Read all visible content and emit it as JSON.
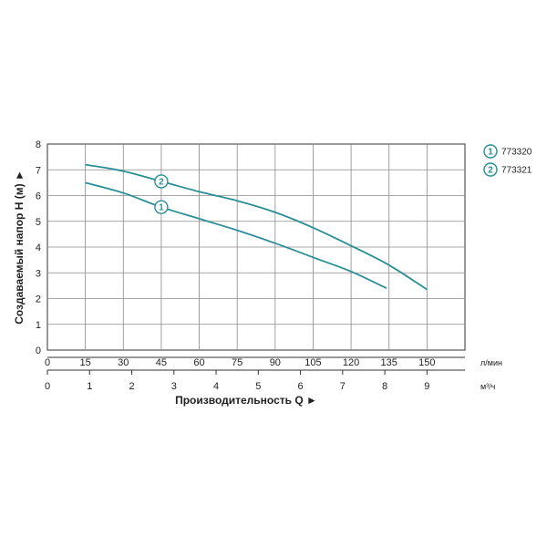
{
  "colors": {
    "curve": "#2a8f95",
    "grid": "#8a8a8a",
    "axis": "#333333"
  },
  "chart_data": {
    "type": "line",
    "x_lpm_ticks": [
      "0",
      "15",
      "30",
      "45",
      "60",
      "75",
      "90",
      "105",
      "120",
      "135",
      "150"
    ],
    "x_m3h_ticks": [
      "0",
      "1",
      "2",
      "3",
      "4",
      "5",
      "6",
      "7",
      "8",
      "9"
    ],
    "y_ticks": [
      "0",
      "1",
      "2",
      "3",
      "4",
      "5",
      "6",
      "7",
      "8"
    ],
    "x_unit_lpm": "л/мин",
    "x_unit_m3h": "м³/ч",
    "xlabel": "Производительность Q ►",
    "ylabel": "Создаваемый напор H (м) ►",
    "xlim_lpm": [
      0,
      165
    ],
    "ylim": [
      0,
      8
    ],
    "grid": true,
    "legend_position": "top-right",
    "series": [
      {
        "marker": "1",
        "name": "773320",
        "points": [
          [
            15,
            6.5
          ],
          [
            30,
            6.1
          ],
          [
            45,
            5.55
          ],
          [
            60,
            5.1
          ],
          [
            75,
            4.65
          ],
          [
            90,
            4.15
          ],
          [
            105,
            3.6
          ],
          [
            120,
            3.05
          ],
          [
            134,
            2.4
          ]
        ]
      },
      {
        "marker": "2",
        "name": "773321",
        "points": [
          [
            15,
            7.2
          ],
          [
            30,
            6.95
          ],
          [
            45,
            6.55
          ],
          [
            60,
            6.15
          ],
          [
            75,
            5.8
          ],
          [
            90,
            5.35
          ],
          [
            105,
            4.75
          ],
          [
            120,
            4.05
          ],
          [
            135,
            3.3
          ],
          [
            150,
            2.35
          ]
        ]
      }
    ]
  }
}
